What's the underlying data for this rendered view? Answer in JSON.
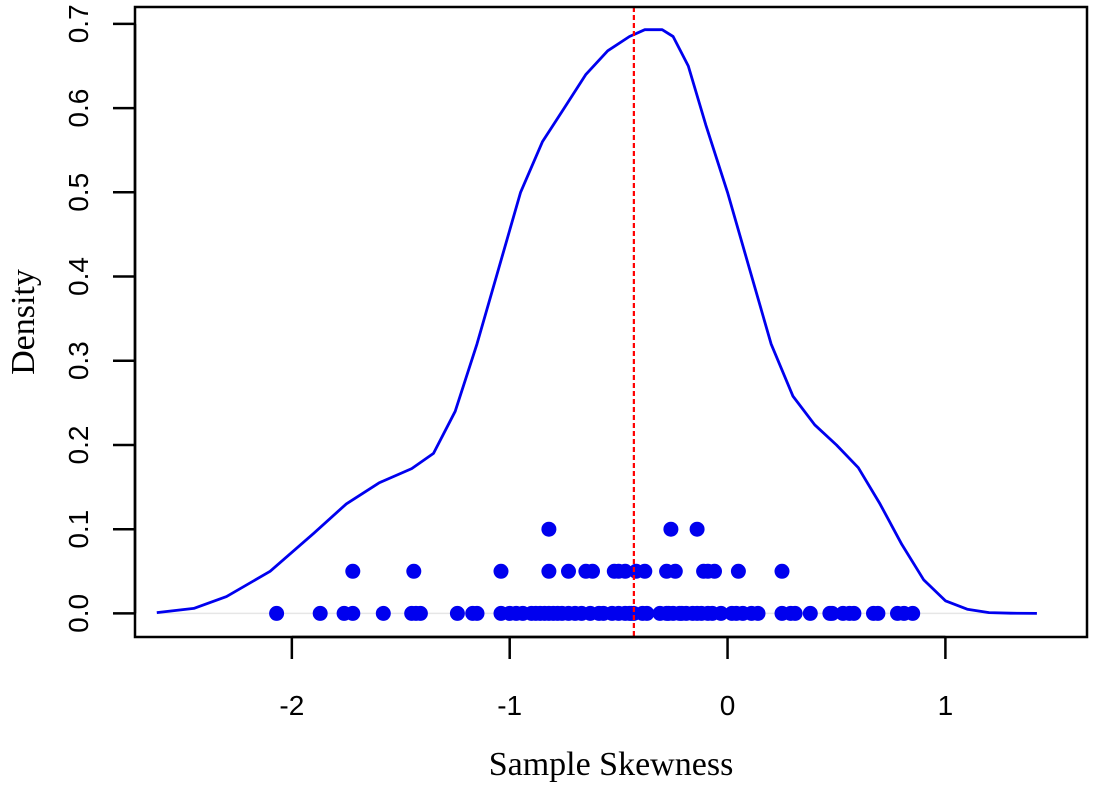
{
  "chart_data": {
    "type": "line",
    "title": "",
    "xlabel": "Sample Skewness",
    "ylabel": "Density",
    "xlim": [
      -2.72,
      1.65
    ],
    "ylim": [
      -0.028,
      0.72
    ],
    "x_ticks": [
      -2,
      -1,
      0,
      1
    ],
    "x_tick_labels": [
      "-2",
      "-1",
      "0",
      "1"
    ],
    "y_ticks": [
      0.0,
      0.1,
      0.2,
      0.3,
      0.4,
      0.5,
      0.6,
      0.7
    ],
    "y_tick_labels": [
      "0.0",
      "0.1",
      "0.2",
      "0.3",
      "0.4",
      "0.5",
      "0.6",
      "0.7"
    ],
    "grid": false,
    "legend": "none",
    "colors": {
      "density": "#0000ee",
      "points": "#0000ee",
      "reference": "#ff0000",
      "baseline": "#e6e6e6"
    },
    "reference_line": {
      "x": -0.43,
      "style": "dashed"
    },
    "series": [
      {
        "kind": "density-curve",
        "x": [
          -2.62,
          -2.45,
          -2.3,
          -2.1,
          -1.9,
          -1.75,
          -1.6,
          -1.45,
          -1.35,
          -1.25,
          -1.15,
          -1.05,
          -0.95,
          -0.85,
          -0.75,
          -0.65,
          -0.55,
          -0.45,
          -0.38,
          -0.3,
          -0.25,
          -0.18,
          -0.1,
          0.0,
          0.1,
          0.2,
          0.3,
          0.4,
          0.5,
          0.6,
          0.7,
          0.8,
          0.9,
          1.0,
          1.1,
          1.2,
          1.3,
          1.42
        ],
        "y": [
          0.001,
          0.006,
          0.02,
          0.05,
          0.095,
          0.13,
          0.155,
          0.172,
          0.19,
          0.24,
          0.32,
          0.41,
          0.5,
          0.56,
          0.6,
          0.64,
          0.668,
          0.685,
          0.693,
          0.693,
          0.685,
          0.65,
          0.58,
          0.5,
          0.41,
          0.32,
          0.258,
          0.224,
          0.2,
          0.173,
          0.13,
          0.082,
          0.04,
          0.015,
          0.005,
          0.001,
          0.0002,
          0.0
        ]
      },
      {
        "kind": "points",
        "x": [
          -2.07,
          -1.87,
          -1.76,
          -1.72,
          -1.72,
          -1.58,
          -1.45,
          -1.44,
          -1.43,
          -1.41,
          -1.24,
          -1.17,
          -1.15,
          -1.04,
          -1.04,
          -1.0,
          -0.97,
          -0.94,
          -0.9,
          -0.88,
          -0.86,
          -0.84,
          -0.82,
          -0.82,
          -0.82,
          -0.8,
          -0.78,
          -0.76,
          -0.73,
          -0.73,
          -0.7,
          -0.67,
          -0.65,
          -0.63,
          -0.62,
          -0.59,
          -0.57,
          -0.53,
          -0.52,
          -0.5,
          -0.5,
          -0.47,
          -0.47,
          -0.45,
          -0.44,
          -0.43,
          -0.42,
          -0.39,
          -0.38,
          -0.37,
          -0.31,
          -0.28,
          -0.28,
          -0.27,
          -0.26,
          -0.25,
          -0.24,
          -0.22,
          -0.21,
          -0.19,
          -0.16,
          -0.14,
          -0.14,
          -0.12,
          -0.11,
          -0.09,
          -0.09,
          -0.07,
          -0.06,
          -0.03,
          0.02,
          0.04,
          0.05,
          0.07,
          0.11,
          0.14,
          0.25,
          0.25,
          0.29,
          0.31,
          0.38,
          0.47,
          0.48,
          0.53,
          0.56,
          0.58,
          0.67,
          0.69,
          0.78,
          0.81,
          0.85
        ],
        "y": [
          0,
          0,
          0,
          0,
          0.05,
          0,
          0,
          0.05,
          0,
          0,
          0,
          0,
          0,
          0,
          0.05,
          0,
          0,
          0,
          0,
          0,
          0,
          0,
          0,
          0.05,
          0.1,
          0,
          0,
          0,
          0,
          0.05,
          0,
          0,
          0.05,
          0,
          0.05,
          0,
          0,
          0,
          0.05,
          0,
          0.05,
          0,
          0.05,
          0,
          0,
          0,
          0.05,
          0,
          0.05,
          0,
          0,
          0,
          0.05,
          0,
          0.1,
          0,
          0.05,
          0,
          0,
          0,
          0,
          0,
          0.1,
          0,
          0.05,
          0,
          0.05,
          0,
          0.05,
          0,
          0,
          0,
          0.05,
          0,
          0,
          0,
          0,
          0.05,
          0,
          0,
          0,
          0,
          0,
          0,
          0,
          0,
          0,
          0,
          0,
          0,
          0
        ]
      }
    ]
  }
}
